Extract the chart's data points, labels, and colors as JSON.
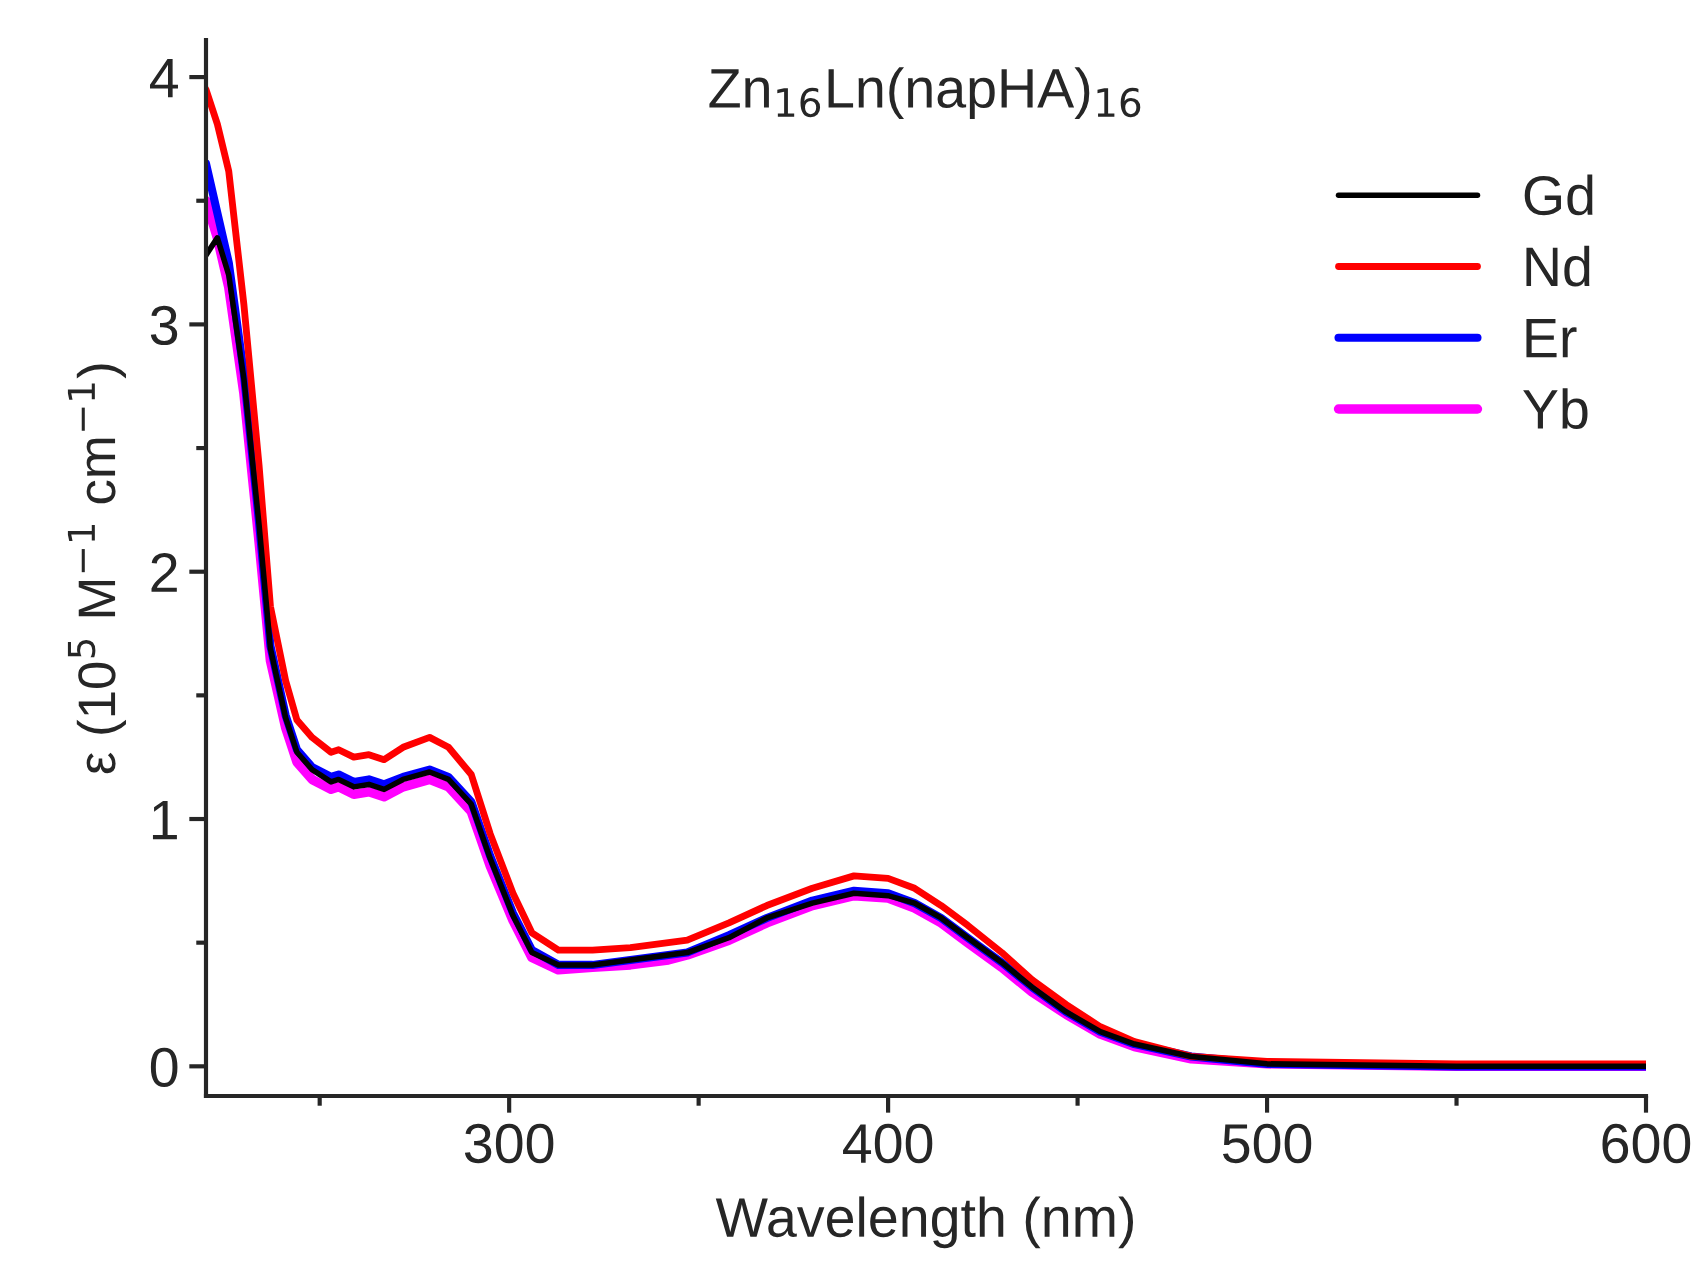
{
  "chart_data": {
    "type": "line",
    "title": "Zn$_{16}$Ln(napHA)$_{16}$",
    "xlabel": "Wavelength (nm)",
    "ylabel": "ε (10$^{5}$ M$^{−1}$ cm$^{−1}$)",
    "x": [
      220,
      223,
      226,
      230,
      234,
      237,
      241,
      244,
      248,
      253,
      255,
      259,
      263,
      267,
      272,
      279,
      284,
      290,
      295,
      301,
      306,
      313,
      322,
      332,
      342,
      347,
      358,
      368,
      380,
      391,
      400,
      407,
      414,
      421,
      430,
      438,
      447,
      456,
      465,
      480,
      500,
      550,
      600
    ],
    "series": [
      {
        "name": "Gd",
        "color": "#000000",
        "values": [
          3.28,
          3.35,
          3.2,
          2.78,
          2.19,
          1.69,
          1.41,
          1.27,
          1.2,
          1.15,
          1.16,
          1.13,
          1.14,
          1.12,
          1.16,
          1.19,
          1.16,
          1.06,
          0.84,
          0.61,
          0.46,
          0.41,
          0.41,
          0.43,
          0.45,
          0.46,
          0.52,
          0.6,
          0.66,
          0.7,
          0.69,
          0.66,
          0.6,
          0.52,
          0.42,
          0.32,
          0.22,
          0.14,
          0.09,
          0.04,
          0.01,
          0,
          0
        ]
      },
      {
        "name": "Nd",
        "color": "#ff0000",
        "values": [
          3.95,
          3.81,
          3.62,
          3.08,
          2.43,
          1.86,
          1.56,
          1.4,
          1.33,
          1.27,
          1.28,
          1.25,
          1.26,
          1.24,
          1.29,
          1.33,
          1.29,
          1.18,
          0.94,
          0.7,
          0.54,
          0.47,
          0.47,
          0.48,
          0.5,
          0.51,
          0.58,
          0.65,
          0.72,
          0.77,
          0.76,
          0.72,
          0.65,
          0.57,
          0.46,
          0.35,
          0.25,
          0.16,
          0.1,
          0.04,
          0.02,
          0.01,
          0.01
        ]
      },
      {
        "name": "Er",
        "color": "#0000ff",
        "values": [
          3.65,
          3.45,
          3.25,
          2.8,
          2.2,
          1.7,
          1.42,
          1.28,
          1.21,
          1.17,
          1.18,
          1.15,
          1.16,
          1.14,
          1.17,
          1.2,
          1.17,
          1.07,
          0.85,
          0.62,
          0.47,
          0.41,
          0.41,
          0.43,
          0.45,
          0.46,
          0.53,
          0.6,
          0.67,
          0.71,
          0.7,
          0.66,
          0.6,
          0.52,
          0.42,
          0.32,
          0.22,
          0.14,
          0.09,
          0.04,
          0.01,
          0,
          0
        ]
      },
      {
        "name": "Yb",
        "color": "#ff00ff",
        "values": [
          3.5,
          3.35,
          3.15,
          2.72,
          2.12,
          1.64,
          1.37,
          1.23,
          1.16,
          1.12,
          1.13,
          1.1,
          1.11,
          1.09,
          1.13,
          1.16,
          1.13,
          1.03,
          0.81,
          0.59,
          0.44,
          0.39,
          0.4,
          0.41,
          0.43,
          0.45,
          0.51,
          0.58,
          0.65,
          0.69,
          0.68,
          0.64,
          0.58,
          0.5,
          0.4,
          0.3,
          0.21,
          0.13,
          0.08,
          0.03,
          0.01,
          0,
          0
        ]
      }
    ],
    "xlim": [
      220,
      600
    ],
    "xticks": [
      {
        "value": 250,
        "label": null
      },
      300,
      {
        "value": 350,
        "label": null
      },
      400,
      {
        "value": 450,
        "label": null
      },
      500,
      {
        "value": 550,
        "label": null
      },
      600
    ],
    "ylim": [
      -0.12,
      4.15
    ],
    "yticks": [
      0,
      {
        "value": 0.5,
        "label": null
      },
      1,
      {
        "value": 1.5,
        "label": null
      },
      2,
      {
        "value": 2.5,
        "label": null
      },
      3,
      {
        "value": 3.5,
        "label": null
      },
      4
    ],
    "legend": "top right",
    "grid": false,
    "marker": "none",
    "line_style": "solid"
  }
}
